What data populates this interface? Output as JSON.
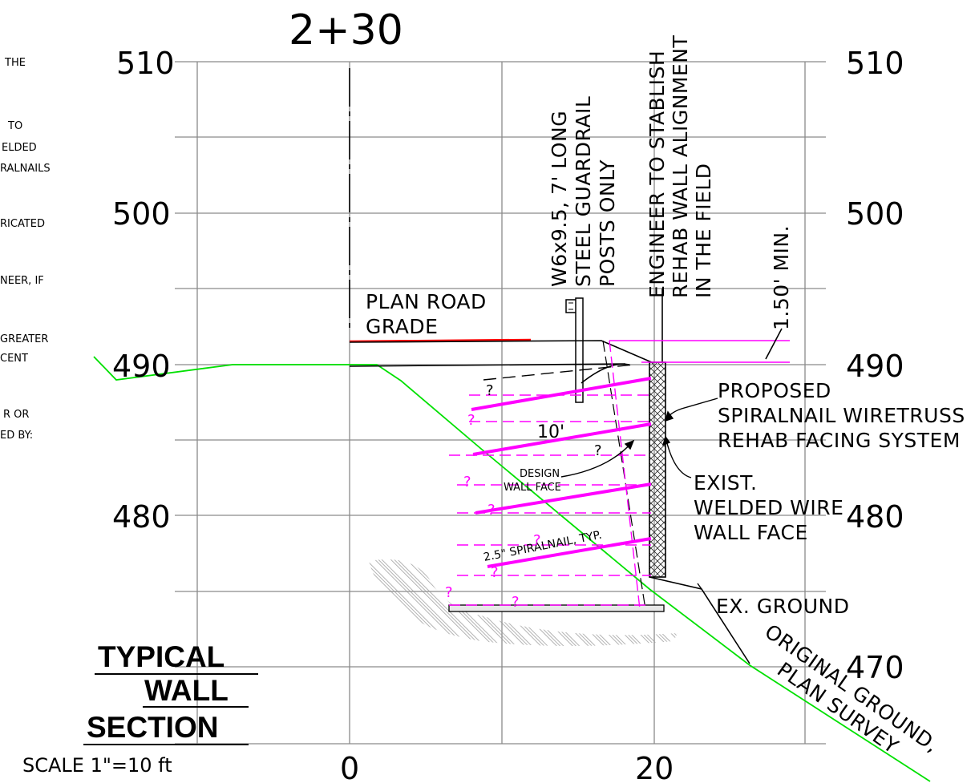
{
  "station": "2+30",
  "elevations_left": [
    "510",
    "500",
    "490",
    "480"
  ],
  "elevations_right": [
    "510",
    "500",
    "490",
    "480",
    "470"
  ],
  "offsets": [
    "0",
    "20"
  ],
  "left_notes": [
    "THE",
    "TO",
    "ELDED",
    "RALNAILS",
    "RICATED",
    "NEER, IF",
    "GREATER",
    "CENT",
    "R OR",
    "ED BY:"
  ],
  "callouts": {
    "plan_road_grade_1": "PLAN ROAD",
    "plan_road_grade_2": "GRADE",
    "guardrail_1": "W6x9.5, 7' LONG",
    "guardrail_2": "STEEL GUARDRAIL",
    "guardrail_3": "POSTS ONLY",
    "engineer_1": "ENGINEER TO STABLISH",
    "engineer_2": "REHAB WALL ALIGNMENT",
    "engineer_3": "IN THE FIELD",
    "min_clear": "1.50' MIN.",
    "proposed_1": "PROPOSED",
    "proposed_2": "SPIRALNAIL WIRETRUSS",
    "proposed_3": "REHAB FACING SYSTEM",
    "exist_1": "EXIST.",
    "exist_2": "WELDED WIRE",
    "exist_3": "WALL FACE",
    "ex_ground": "EX. GROUND",
    "original_ground_1": "ORIGINAL GROUND,",
    "original_ground_2": "PLAN SURVEY",
    "design_1": "DESIGN",
    "design_2": "WALL FACE",
    "spiralnail": "2.5\" SPIRALNAIL, TYP.",
    "ten_ft": "10'",
    "q": "?"
  },
  "title": {
    "line1": "TYPICAL",
    "line2": "WALL",
    "line3": "SECTION",
    "scale": "SCALE 1\"=10 ft"
  },
  "colors": {
    "nail": "#ff00ff",
    "ground": "#00e000",
    "road": "#ff0000",
    "grid": "#8a8a8a"
  }
}
